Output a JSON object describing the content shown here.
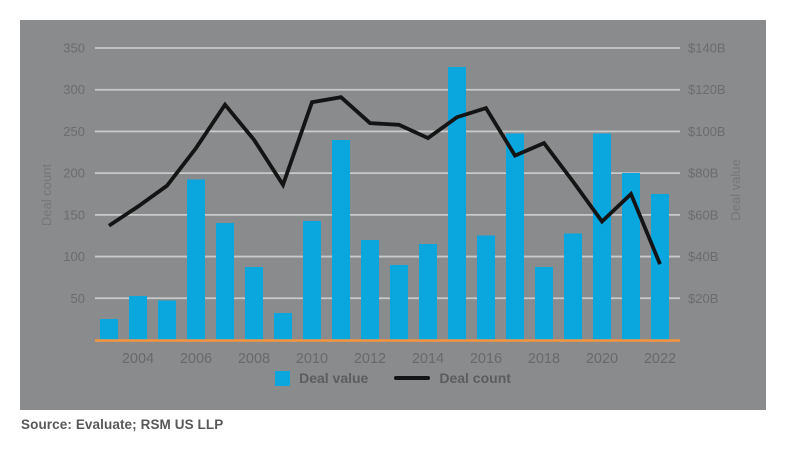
{
  "source_line": "Source: Evaluate; RSM US LLP",
  "colors": {
    "page_bg": "#FFFFFF",
    "panel_bg": "#898B8D",
    "gridline": "#C7C9CA",
    "bar": "#0AA7DF",
    "line": "#141414",
    "baseline": "#F5953F",
    "tick_text": "#6A6C6E",
    "x_tick_text": "#67696B",
    "axis_title_text": "#75777A",
    "legend_text": "#5B5D5F",
    "source_text": "#57585A"
  },
  "chart_data": {
    "type": "bar+line combo",
    "x": [
      2003,
      2004,
      2005,
      2006,
      2007,
      2008,
      2009,
      2010,
      2011,
      2012,
      2013,
      2014,
      2015,
      2016,
      2017,
      2018,
      2019,
      2020,
      2021,
      2022
    ],
    "series": [
      {
        "name": "Deal value",
        "type": "bar",
        "axis": "right",
        "unit": "billions USD",
        "values": [
          10,
          21,
          19,
          77,
          56,
          35,
          13,
          57,
          96,
          48,
          36,
          46,
          131,
          50,
          99,
          35,
          51,
          99,
          80,
          70
        ]
      },
      {
        "name": "Deal count",
        "type": "line",
        "axis": "left",
        "unit": "count",
        "values": [
          137,
          160,
          185,
          230,
          282,
          240,
          186,
          285,
          291,
          260,
          258,
          242,
          267,
          278,
          221,
          236,
          190,
          142,
          175,
          91
        ]
      }
    ],
    "left_axis": {
      "title": "Deal count",
      "ticks": [
        350,
        300,
        250,
        200,
        150,
        100,
        50
      ],
      "range": [
        0,
        350
      ]
    },
    "right_axis": {
      "title": "Deal value",
      "ticks": [
        "$140B",
        "$120B",
        "$100B",
        "$80B",
        "$60B",
        "$40B",
        "$20B"
      ],
      "range_billions": [
        0,
        140
      ]
    },
    "x_tick_labels": [
      "2004",
      "2006",
      "2008",
      "2010",
      "2012",
      "2014",
      "2016",
      "2018",
      "2020",
      "2022"
    ],
    "legend": [
      {
        "label": "Deal value",
        "swatch": "square"
      },
      {
        "label": "Deal count",
        "swatch": "line"
      }
    ],
    "gridlines": true,
    "legend_position": "bottom-center"
  }
}
